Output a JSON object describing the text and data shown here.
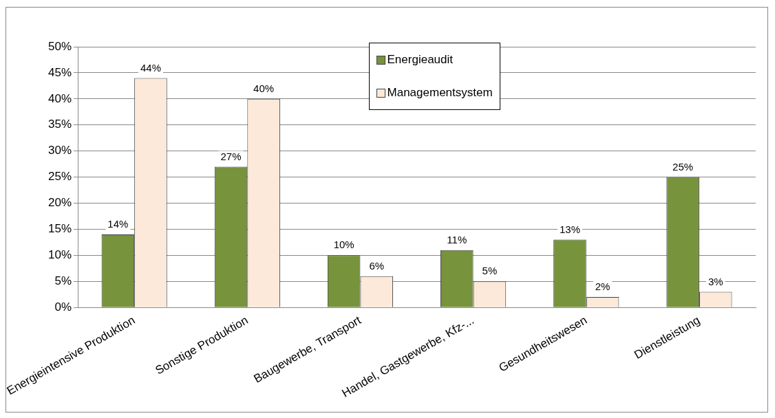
{
  "chart_data": {
    "type": "bar",
    "categories": [
      "Energieintensive Produktion",
      "Sonstige Produktion",
      "Baugewerbe, Transport",
      "Handel, Gastgewerbe, Kfz-...",
      "Gesundheitswesen",
      "Dienstleistung"
    ],
    "series": [
      {
        "name": "Energieaudit",
        "color": "#77933c",
        "values": [
          14,
          27,
          10,
          11,
          13,
          25
        ],
        "value_labels": [
          "14%",
          "27%",
          "10%",
          "11%",
          "13%",
          "25%"
        ]
      },
      {
        "name": "Managementsystem",
        "color": "#fde9d9",
        "values": [
          44,
          40,
          6,
          5,
          2,
          3
        ],
        "value_labels": [
          "44%",
          "40%",
          "6%",
          "5%",
          "2%",
          "3%"
        ]
      }
    ],
    "ylim": [
      0,
      50
    ],
    "yticks": [
      {
        "value": 0,
        "label": "0%"
      },
      {
        "value": 5,
        "label": "5%"
      },
      {
        "value": 10,
        "label": "10%"
      },
      {
        "value": 15,
        "label": "15%"
      },
      {
        "value": 20,
        "label": "20%"
      },
      {
        "value": 25,
        "label": "25%"
      },
      {
        "value": 30,
        "label": "30%"
      },
      {
        "value": 35,
        "label": "35%"
      },
      {
        "value": 40,
        "label": "40%"
      },
      {
        "value": 45,
        "label": "45%"
      },
      {
        "value": 50,
        "label": "50%"
      }
    ],
    "grid": "y",
    "legend": "top"
  }
}
